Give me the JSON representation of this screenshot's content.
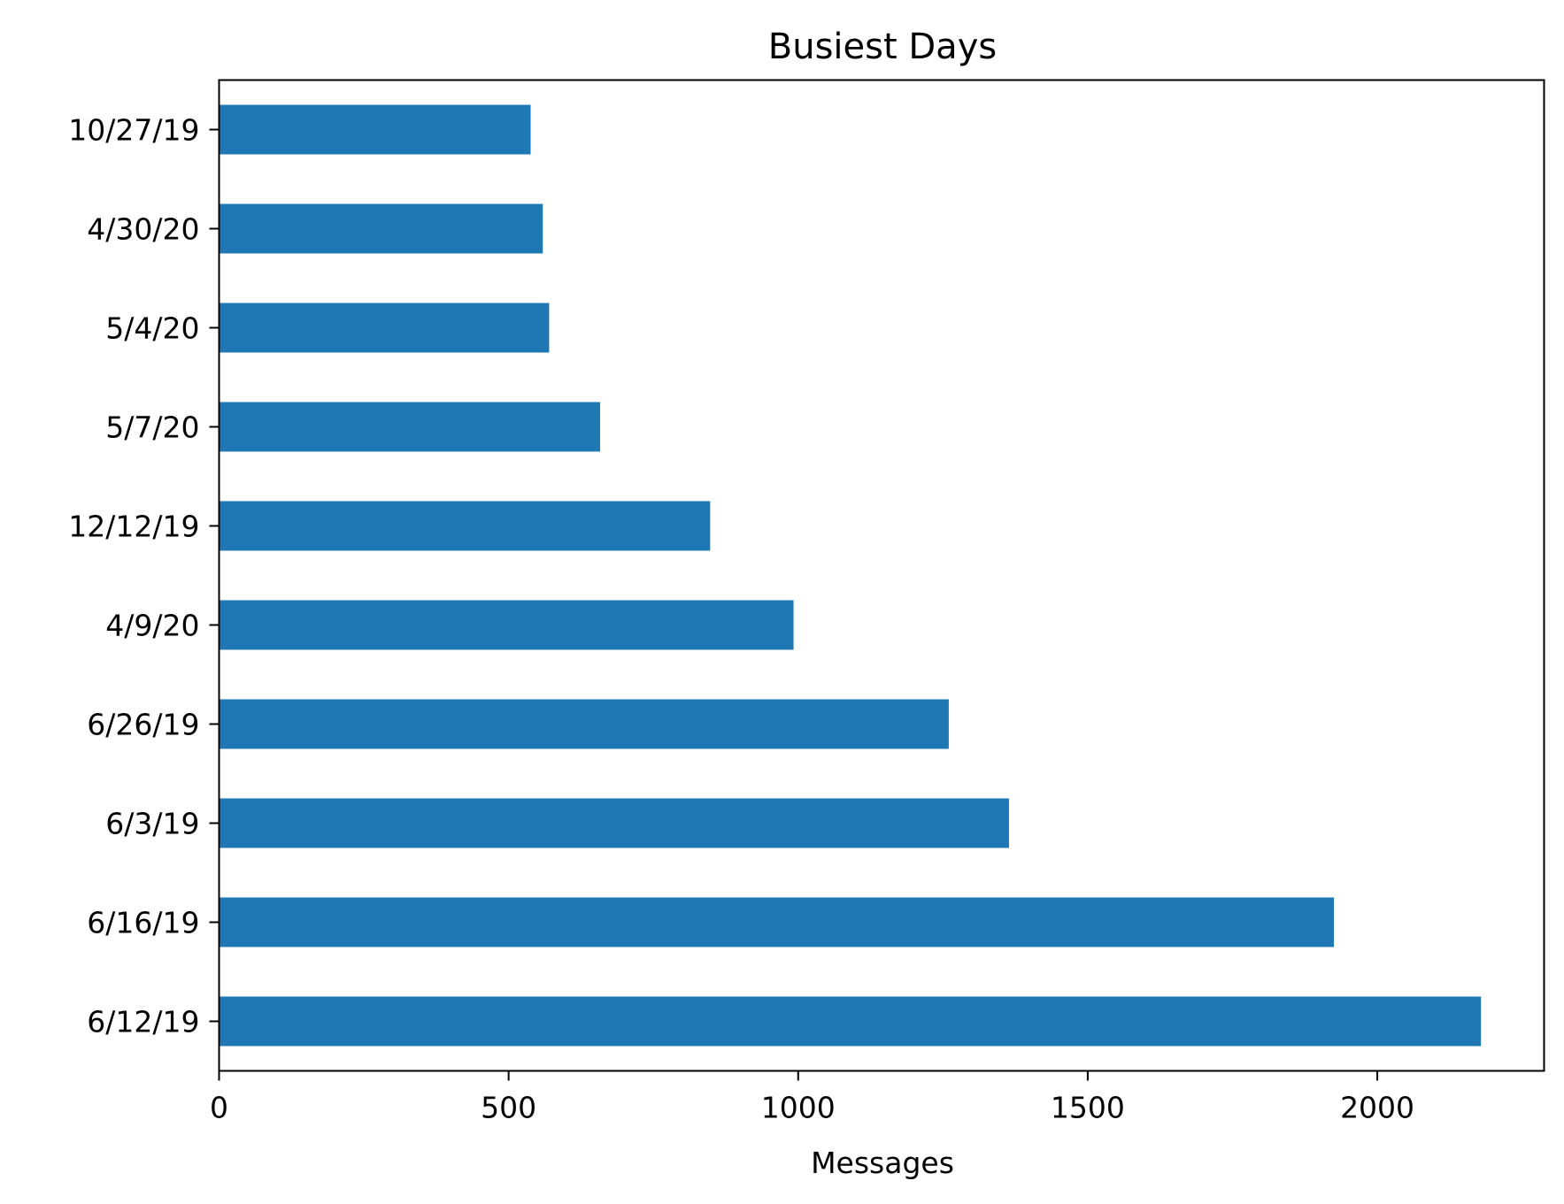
{
  "chart_data": {
    "type": "bar",
    "orientation": "horizontal",
    "title": "Busiest Days",
    "xlabel": "Messages",
    "ylabel": "",
    "categories": [
      "10/27/19",
      "4/30/20",
      "5/4/20",
      "5/7/20",
      "12/12/19",
      "4/9/20",
      "6/26/19",
      "6/3/19",
      "6/16/19",
      "6/12/19"
    ],
    "values": [
      538,
      559,
      570,
      658,
      848,
      992,
      1260,
      1364,
      1925,
      2179
    ],
    "xlim": [
      0,
      2288
    ],
    "xticks": [
      0,
      500,
      1000,
      1500,
      2000
    ],
    "xtick_labels": [
      "0",
      "500",
      "1000",
      "1500",
      "2000"
    ],
    "grid": false,
    "legend": "none",
    "bar_color": "#1f77b4"
  }
}
